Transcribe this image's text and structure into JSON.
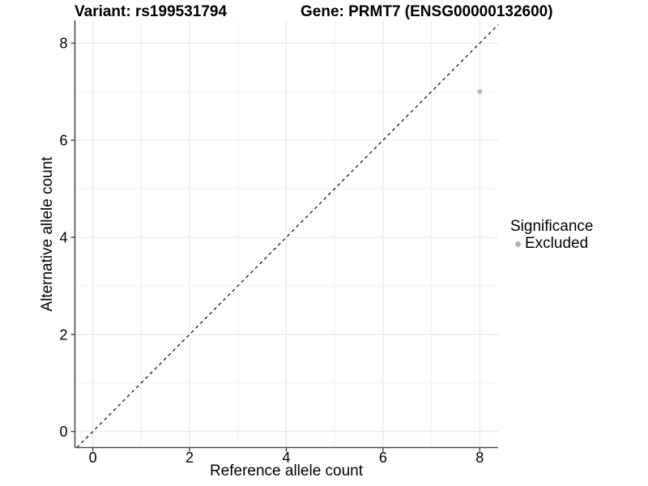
{
  "chart_data": {
    "type": "scatter",
    "titles": {
      "left": "Variant: rs199531794",
      "right": "Gene: PRMT7 (ENSG00000132600)"
    },
    "xlabel": "Reference allele count",
    "ylabel": "Alternative allele count",
    "xlim": [
      -0.37,
      8.38
    ],
    "ylim": [
      -0.33,
      8.47
    ],
    "x_ticks": [
      0,
      2,
      4,
      6,
      8
    ],
    "y_ticks": [
      0,
      2,
      4,
      6,
      8
    ],
    "x_minor_ticks": [
      1,
      3,
      5,
      7
    ],
    "y_minor_ticks": [
      1,
      3,
      5,
      7
    ],
    "grid": "major+minor",
    "identity_line": {
      "style": "dashed",
      "slope": 1,
      "intercept": 0,
      "color": "#000000"
    },
    "series": [
      {
        "name": "Excluded",
        "color": "#b8b8b8",
        "marker": "circle",
        "points": [
          {
            "x": 8,
            "y": 7
          }
        ]
      }
    ],
    "legend": {
      "position": "right",
      "title": "Significance",
      "items": [
        {
          "label": "Excluded",
          "color": "#b0b0b0",
          "marker": "circle"
        }
      ]
    }
  },
  "style": {
    "background": "#ffffff",
    "text_color": "#000000",
    "axis_line_color": "#4d4d4d",
    "tick_color": "#333333",
    "grid_major_color": "#e4e4e4",
    "grid_minor_color": "#f0f0f0",
    "point_color": "#b8b8b8"
  }
}
